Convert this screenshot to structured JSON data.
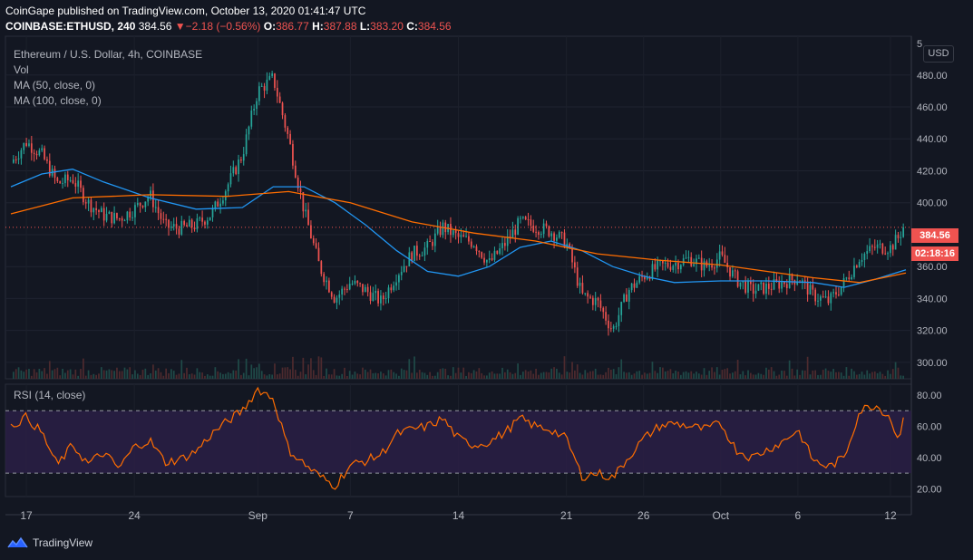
{
  "header": {
    "published": "CoinGape published on TradingView.com, October 13, 2020 01:41:47 UTC",
    "symbol": "COINBASE:ETHUSD, 240",
    "last": "384.56",
    "change": "−2.18 (−0.56%)",
    "o_label": "O:",
    "o": "386.77",
    "h_label": "H:",
    "h": "387.88",
    "l_label": "L:",
    "l": "383.20",
    "c_label": "C:",
    "c": "384.56"
  },
  "legend": {
    "title": "Ethereum / U.S. Dollar, 4h, COINBASE",
    "vol": "Vol",
    "ma50": "MA (50, close, 0)",
    "ma100": "MA (100, close, 0)",
    "rsi": "RSI (14, close)"
  },
  "axis": {
    "currency": "USD",
    "price_tag": "384.56",
    "countdown": "02:18:16",
    "top_cut_label": "5"
  },
  "footer": {
    "brand": "TradingView"
  },
  "colors": {
    "up": "#26a69a",
    "down": "#ef5350",
    "ma50": "#2196f3",
    "ma100": "#ff6d00",
    "rsi": "#ff6d00",
    "rsi_band": "#2a1f45",
    "background": "#131722"
  },
  "chart_data": [
    {
      "type": "candlestick",
      "title": "Ethereum / U.S. Dollar, 4h, COINBASE",
      "x_range": [
        "2020-08-16",
        "2020-10-13"
      ],
      "ylim": [
        292,
        502
      ],
      "y_ticks": [
        300,
        320,
        340,
        360,
        380,
        400,
        420,
        440,
        460,
        480
      ],
      "x_ticks": [
        {
          "label": "17",
          "date": "2020-08-17"
        },
        {
          "label": "24",
          "date": "2020-08-24"
        },
        {
          "label": "Sep",
          "date": "2020-09-01"
        },
        {
          "label": "7",
          "date": "2020-09-07"
        },
        {
          "label": "14",
          "date": "2020-09-14"
        },
        {
          "label": "21",
          "date": "2020-09-21"
        },
        {
          "label": "26",
          "date": "2020-09-26"
        },
        {
          "label": "Oct",
          "date": "2020-10-01"
        },
        {
          "label": "6",
          "date": "2020-10-06"
        },
        {
          "label": "12",
          "date": "2020-10-12"
        }
      ],
      "close_path": [
        [
          "2020-08-16",
          425
        ],
        [
          "2020-08-17",
          438
        ],
        [
          "2020-08-18",
          430
        ],
        [
          "2020-08-19",
          412
        ],
        [
          "2020-08-20",
          415
        ],
        [
          "2020-08-21",
          400
        ],
        [
          "2020-08-22",
          392
        ],
        [
          "2020-08-23",
          390
        ],
        [
          "2020-08-24",
          396
        ],
        [
          "2020-08-25",
          405
        ],
        [
          "2020-08-26",
          385
        ],
        [
          "2020-08-27",
          384
        ],
        [
          "2020-08-28",
          386
        ],
        [
          "2020-08-29",
          393
        ],
        [
          "2020-08-30",
          410
        ],
        [
          "2020-08-31",
          430
        ],
        [
          "2020-09-01",
          470
        ],
        [
          "2020-09-02",
          478
        ],
        [
          "2020-09-03",
          440
        ],
        [
          "2020-09-04",
          395
        ],
        [
          "2020-09-05",
          360
        ],
        [
          "2020-09-06",
          340
        ],
        [
          "2020-09-07",
          350
        ],
        [
          "2020-09-08",
          345
        ],
        [
          "2020-09-09",
          338
        ],
        [
          "2020-09-10",
          355
        ],
        [
          "2020-09-11",
          368
        ],
        [
          "2020-09-12",
          372
        ],
        [
          "2020-09-13",
          385
        ],
        [
          "2020-09-14",
          378
        ],
        [
          "2020-09-15",
          375
        ],
        [
          "2020-09-16",
          362
        ],
        [
          "2020-09-17",
          374
        ],
        [
          "2020-09-18",
          388
        ],
        [
          "2020-09-19",
          385
        ],
        [
          "2020-09-20",
          382
        ],
        [
          "2020-09-21",
          375
        ],
        [
          "2020-09-22",
          342
        ],
        [
          "2020-09-23",
          338
        ],
        [
          "2020-09-24",
          320
        ],
        [
          "2020-09-25",
          345
        ],
        [
          "2020-09-26",
          354
        ],
        [
          "2020-09-27",
          360
        ],
        [
          "2020-09-28",
          362
        ],
        [
          "2020-09-29",
          365
        ],
        [
          "2020-09-30",
          360
        ],
        [
          "2020-10-01",
          366
        ],
        [
          "2020-10-02",
          352
        ],
        [
          "2020-10-03",
          345
        ],
        [
          "2020-10-04",
          347
        ],
        [
          "2020-10-05",
          350
        ],
        [
          "2020-10-06",
          353
        ],
        [
          "2020-10-07",
          342
        ],
        [
          "2020-10-08",
          338
        ],
        [
          "2020-10-09",
          350
        ],
        [
          "2020-10-10",
          366
        ],
        [
          "2020-10-11",
          372
        ],
        [
          "2020-10-12",
          372
        ],
        [
          "2020-10-12T12:00",
          378
        ],
        [
          "2020-10-12T20:00",
          384.56
        ]
      ],
      "last_price": 384.56,
      "series": [
        {
          "name": "MA (50, close, 0)",
          "points": [
            [
              "2020-08-16",
              410
            ],
            [
              "2020-08-18",
              418
            ],
            [
              "2020-08-20",
              421
            ],
            [
              "2020-08-22",
              413
            ],
            [
              "2020-08-25",
              403
            ],
            [
              "2020-08-28",
              396
            ],
            [
              "2020-08-31",
              397
            ],
            [
              "2020-09-02",
              410
            ],
            [
              "2020-09-04",
              410
            ],
            [
              "2020-09-06",
              400
            ],
            [
              "2020-09-08",
              386
            ],
            [
              "2020-09-10",
              370
            ],
            [
              "2020-09-12",
              357
            ],
            [
              "2020-09-14",
              354
            ],
            [
              "2020-09-16",
              360
            ],
            [
              "2020-09-18",
              372
            ],
            [
              "2020-09-20",
              376
            ],
            [
              "2020-09-22",
              370
            ],
            [
              "2020-09-24",
              360
            ],
            [
              "2020-09-26",
              354
            ],
            [
              "2020-09-28",
              350
            ],
            [
              "2020-10-01",
              351
            ],
            [
              "2020-10-04",
              351
            ],
            [
              "2020-10-07",
              350
            ],
            [
              "2020-10-09",
              347
            ],
            [
              "2020-10-11",
              352
            ],
            [
              "2020-10-13",
              358
            ]
          ]
        },
        {
          "name": "MA (100, close, 0)",
          "points": [
            [
              "2020-08-16",
              393
            ],
            [
              "2020-08-20",
              403
            ],
            [
              "2020-08-25",
              405
            ],
            [
              "2020-08-30",
              404
            ],
            [
              "2020-09-03",
              407
            ],
            [
              "2020-09-07",
              400
            ],
            [
              "2020-09-11",
              388
            ],
            [
              "2020-09-15",
              381
            ],
            [
              "2020-09-19",
              376
            ],
            [
              "2020-09-23",
              368
            ],
            [
              "2020-09-27",
              364
            ],
            [
              "2020-10-01",
              361
            ],
            [
              "2020-10-04",
              357
            ],
            [
              "2020-10-07",
              353
            ],
            [
              "2020-10-10",
              350
            ],
            [
              "2020-10-13",
              356
            ]
          ]
        }
      ]
    },
    {
      "type": "line",
      "title": "RSI (14, close)",
      "ylim": [
        15,
        87
      ],
      "y_ticks": [
        20,
        40,
        60,
        80
      ],
      "bands": [
        30,
        70
      ],
      "series": [
        {
          "name": "RSI (14, close)",
          "points": [
            [
              "2020-08-16",
              60
            ],
            [
              "2020-08-17",
              66
            ],
            [
              "2020-08-18",
              56
            ],
            [
              "2020-08-19",
              35
            ],
            [
              "2020-08-20",
              48
            ],
            [
              "2020-08-21",
              36
            ],
            [
              "2020-08-22",
              43
            ],
            [
              "2020-08-23",
              33
            ],
            [
              "2020-08-24",
              47
            ],
            [
              "2020-08-25",
              51
            ],
            [
              "2020-08-26",
              37
            ],
            [
              "2020-08-27",
              39
            ],
            [
              "2020-08-28",
              44
            ],
            [
              "2020-08-29",
              55
            ],
            [
              "2020-08-30",
              63
            ],
            [
              "2020-08-31",
              70
            ],
            [
              "2020-09-01",
              84
            ],
            [
              "2020-09-02",
              78
            ],
            [
              "2020-09-03",
              45
            ],
            [
              "2020-09-04",
              36
            ],
            [
              "2020-09-05",
              28
            ],
            [
              "2020-09-06",
              22
            ],
            [
              "2020-09-07",
              35
            ],
            [
              "2020-09-08",
              38
            ],
            [
              "2020-09-09",
              42
            ],
            [
              "2020-09-10",
              55
            ],
            [
              "2020-09-11",
              58
            ],
            [
              "2020-09-12",
              60
            ],
            [
              "2020-09-13",
              65
            ],
            [
              "2020-09-14",
              52
            ],
            [
              "2020-09-15",
              48
            ],
            [
              "2020-09-16",
              50
            ],
            [
              "2020-09-17",
              56
            ],
            [
              "2020-09-18",
              65
            ],
            [
              "2020-09-19",
              60
            ],
            [
              "2020-09-20",
              58
            ],
            [
              "2020-09-21",
              52
            ],
            [
              "2020-09-22",
              28
            ],
            [
              "2020-09-23",
              30
            ],
            [
              "2020-09-24",
              27
            ],
            [
              "2020-09-25",
              40
            ],
            [
              "2020-09-26",
              52
            ],
            [
              "2020-09-27",
              60
            ],
            [
              "2020-09-28",
              62
            ],
            [
              "2020-09-29",
              60
            ],
            [
              "2020-09-30",
              58
            ],
            [
              "2020-10-01",
              62
            ],
            [
              "2020-10-02",
              45
            ],
            [
              "2020-10-03",
              40
            ],
            [
              "2020-10-04",
              45
            ],
            [
              "2020-10-05",
              50
            ],
            [
              "2020-10-06",
              58
            ],
            [
              "2020-10-07",
              38
            ],
            [
              "2020-10-08",
              34
            ],
            [
              "2020-10-09",
              40
            ],
            [
              "2020-10-10",
              70
            ],
            [
              "2020-10-11",
              74
            ],
            [
              "2020-10-12",
              66
            ],
            [
              "2020-10-12T12:00",
              50
            ],
            [
              "2020-10-12T20:00",
              68
            ]
          ]
        }
      ]
    }
  ]
}
